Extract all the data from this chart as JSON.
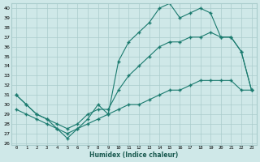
{
  "xlabel": "Humidex (Indice chaleur)",
  "bg_color": "#cfe8e8",
  "grid_color": "#aacccc",
  "line_color": "#1a7a6e",
  "xlim": [
    -0.5,
    23.5
  ],
  "ylim": [
    25.8,
    40.5
  ],
  "xticks": [
    0,
    1,
    2,
    3,
    4,
    5,
    6,
    7,
    8,
    9,
    10,
    11,
    12,
    13,
    14,
    15,
    16,
    17,
    18,
    19,
    20,
    21,
    22,
    23
  ],
  "yticks": [
    26,
    27,
    28,
    29,
    30,
    31,
    32,
    33,
    34,
    35,
    36,
    37,
    38,
    39,
    40
  ],
  "curve1_x": [
    0,
    1,
    2,
    3,
    4,
    5,
    6,
    7,
    8,
    9,
    10,
    11,
    12,
    13,
    14,
    15,
    16,
    17,
    18,
    19,
    20,
    21,
    22,
    23
  ],
  "curve1_y": [
    31.0,
    30.0,
    29.0,
    28.5,
    27.5,
    26.5,
    27.5,
    28.5,
    30.0,
    29.0,
    34.5,
    36.5,
    37.5,
    38.5,
    40.0,
    40.5,
    39.0,
    39.5,
    40.0,
    39.5,
    37.0,
    37.0,
    35.5,
    31.5
  ],
  "curve2_x": [
    0,
    1,
    2,
    3,
    4,
    5,
    6,
    7,
    8,
    9,
    10,
    11,
    12,
    13,
    14,
    15,
    16,
    17,
    18,
    19,
    20,
    21,
    22,
    23
  ],
  "curve2_y": [
    31.0,
    30.0,
    29.0,
    28.5,
    28.0,
    27.5,
    28.0,
    29.0,
    29.5,
    29.5,
    31.5,
    33.0,
    34.0,
    35.0,
    36.0,
    36.5,
    36.5,
    37.0,
    37.0,
    37.5,
    37.0,
    37.0,
    35.5,
    31.5
  ],
  "curve3_x": [
    0,
    1,
    2,
    3,
    4,
    5,
    6,
    7,
    8,
    9,
    10,
    11,
    12,
    13,
    14,
    15,
    16,
    17,
    18,
    19,
    20,
    21,
    22,
    23
  ],
  "curve3_y": [
    29.5,
    29.0,
    28.5,
    28.0,
    27.5,
    27.0,
    27.5,
    28.0,
    28.5,
    29.0,
    29.5,
    30.0,
    30.0,
    30.5,
    31.0,
    31.5,
    31.5,
    32.0,
    32.5,
    32.5,
    32.5,
    32.5,
    31.5,
    31.5
  ]
}
